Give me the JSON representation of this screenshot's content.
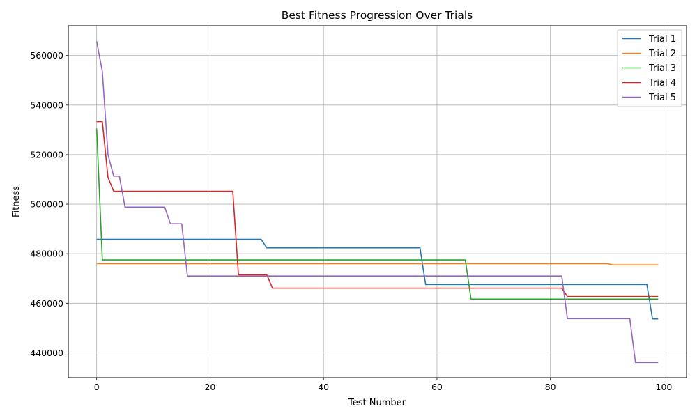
{
  "chart_data": {
    "type": "line",
    "title": "Best Fitness Progression Over Trials",
    "xlabel": "Test Number",
    "ylabel": "Fitness",
    "xlim": [
      -5,
      104
    ],
    "ylim": [
      430000,
      572000
    ],
    "xticks": [
      0,
      20,
      40,
      60,
      80,
      100
    ],
    "yticks": [
      440000,
      460000,
      480000,
      500000,
      520000,
      540000,
      560000
    ],
    "grid": true,
    "legend_position": "top-right",
    "x_points": [
      0,
      1,
      2,
      3,
      4,
      5,
      12,
      13,
      15,
      16,
      24,
      25,
      29,
      30,
      31,
      57,
      58,
      65,
      66,
      82,
      83,
      90,
      91,
      94,
      95,
      97,
      98,
      99
    ],
    "series": [
      {
        "name": "Trial 1",
        "color": "#1f77b4",
        "values": [
          485800,
          485800,
          485800,
          485800,
          485800,
          485800,
          485800,
          485800,
          485800,
          485800,
          485800,
          485800,
          485800,
          482400,
          482400,
          482400,
          467600,
          467600,
          467600,
          467600,
          467600,
          467600,
          467600,
          467600,
          467600,
          467600,
          453700,
          453700
        ]
      },
      {
        "name": "Trial 2",
        "color": "#ff7f0e",
        "values": [
          476000,
          476000,
          476000,
          476000,
          476000,
          476000,
          476000,
          476000,
          476000,
          476000,
          476000,
          476000,
          476000,
          476000,
          476000,
          476000,
          476000,
          476000,
          476000,
          476000,
          476000,
          476000,
          475500,
          475500,
          475500,
          475500,
          475500,
          475500
        ]
      },
      {
        "name": "Trial 3",
        "color": "#2ca02c",
        "values": [
          530500,
          477500,
          477500,
          477500,
          477500,
          477500,
          477500,
          477500,
          477500,
          477500,
          477500,
          477500,
          477500,
          477500,
          477500,
          477500,
          477500,
          477500,
          461700,
          461700,
          461700,
          461700,
          461700,
          461700,
          461700,
          461700,
          461700,
          461700
        ]
      },
      {
        "name": "Trial 4",
        "color": "#d62728",
        "values": [
          533300,
          533300,
          510800,
          505200,
          505200,
          505200,
          505200,
          505200,
          505200,
          505200,
          505200,
          471500,
          471500,
          471500,
          466100,
          466100,
          466100,
          466100,
          466100,
          466100,
          462700,
          462700,
          462700,
          462700,
          462700,
          462700,
          462700,
          462700
        ]
      },
      {
        "name": "Trial 5",
        "color": "#9467bd",
        "values": [
          565700,
          553500,
          520000,
          511300,
          511300,
          498800,
          498800,
          492100,
          492100,
          471000,
          471000,
          471000,
          471000,
          471000,
          471000,
          471000,
          471000,
          471000,
          471000,
          471000,
          453800,
          453800,
          453800,
          453800,
          436100,
          436100,
          436100,
          436100
        ]
      }
    ]
  }
}
